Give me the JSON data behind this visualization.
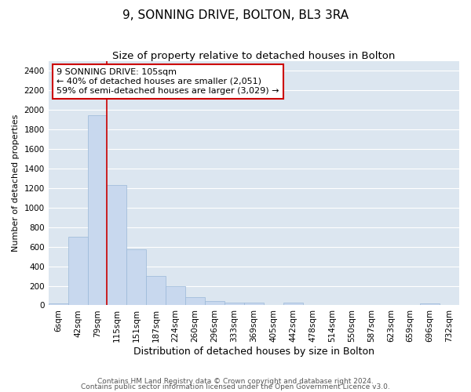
{
  "title1": "9, SONNING DRIVE, BOLTON, BL3 3RA",
  "title2": "Size of property relative to detached houses in Bolton",
  "xlabel": "Distribution of detached houses by size in Bolton",
  "ylabel": "Number of detached properties",
  "categories": [
    "6sqm",
    "42sqm",
    "79sqm",
    "115sqm",
    "151sqm",
    "187sqm",
    "224sqm",
    "260sqm",
    "296sqm",
    "333sqm",
    "369sqm",
    "405sqm",
    "442sqm",
    "478sqm",
    "514sqm",
    "550sqm",
    "587sqm",
    "623sqm",
    "659sqm",
    "696sqm",
    "732sqm"
  ],
  "values": [
    20,
    700,
    1950,
    1230,
    570,
    300,
    200,
    80,
    45,
    30,
    30,
    0,
    30,
    0,
    0,
    0,
    0,
    0,
    0,
    20,
    0
  ],
  "bar_color": "#c8d8ee",
  "bar_edge_color": "#9ab8d8",
  "background_color": "#dce6f0",
  "grid_color": "#ffffff",
  "vline_x": 2.5,
  "vline_color": "#cc0000",
  "annotation_text": "9 SONNING DRIVE: 105sqm\n← 40% of detached houses are smaller (2,051)\n59% of semi-detached houses are larger (3,029) →",
  "annotation_box_color": "#ffffff",
  "annotation_box_edge_color": "#cc0000",
  "ylim": [
    0,
    2500
  ],
  "yticks": [
    0,
    200,
    400,
    600,
    800,
    1000,
    1200,
    1400,
    1600,
    1800,
    2000,
    2200,
    2400
  ],
  "footer1": "Contains HM Land Registry data © Crown copyright and database right 2024.",
  "footer2": "Contains public sector information licensed under the Open Government Licence v3.0.",
  "title1_fontsize": 11,
  "title2_fontsize": 9.5,
  "xlabel_fontsize": 9,
  "ylabel_fontsize": 8,
  "tick_fontsize": 7.5,
  "annotation_fontsize": 8,
  "footer_fontsize": 6.5
}
